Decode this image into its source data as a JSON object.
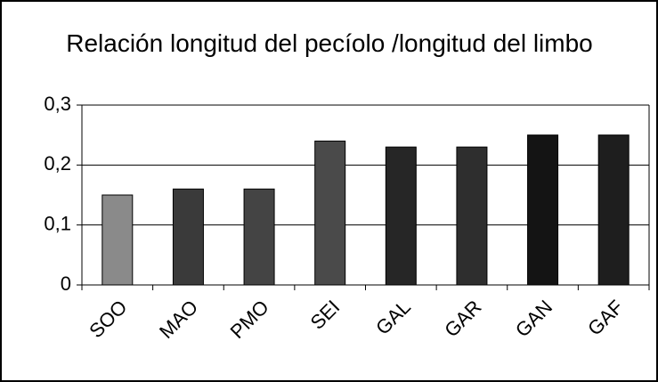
{
  "chart_data": {
    "type": "bar",
    "title": "Relación longitud del pecíolo /longitud del limbo",
    "categories": [
      "SOO",
      "MAO",
      "PMO",
      "SEI",
      "GAL",
      "GAR",
      "GAN",
      "GAF"
    ],
    "values": [
      0.15,
      0.16,
      0.16,
      0.24,
      0.23,
      0.23,
      0.25,
      0.25
    ],
    "colors": [
      "#8a8a8a",
      "#3a3a3a",
      "#444444",
      "#4a4a4a",
      "#262626",
      "#2e2e2e",
      "#141414",
      "#1e1e1e"
    ],
    "ylim": [
      0,
      0.3
    ],
    "yticks": [
      0,
      {
        "value": 0.1,
        "label": "0,1"
      },
      {
        "value": 0.2,
        "label": "0,2"
      },
      {
        "value": 0.3,
        "label": "0,3"
      }
    ],
    "grid": true
  }
}
